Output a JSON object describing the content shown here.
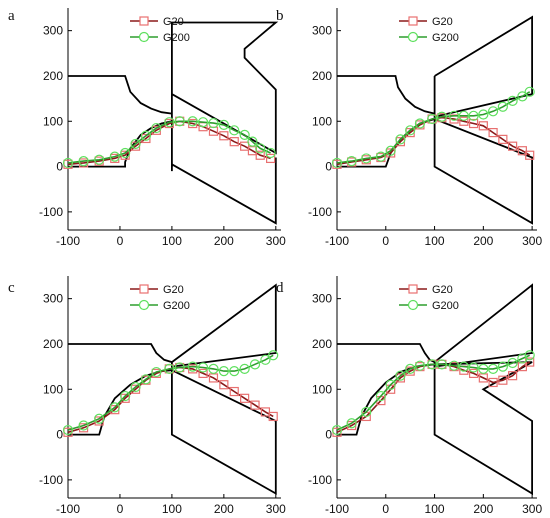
{
  "colors": {
    "geometry": "#000000",
    "g20_line": "#8b1a1a",
    "g20_marker": "#e87070",
    "g200_line": "#2e9e2e",
    "g200_marker": "#5ee05e"
  },
  "chart_data": [
    {
      "type": "line",
      "panel_label": "a",
      "xlim": [
        -100,
        310
      ],
      "ylim": [
        -140,
        350
      ],
      "xticks": [
        -100,
        0,
        100,
        200,
        300
      ],
      "yticks": [
        -100,
        0,
        100,
        200,
        300
      ],
      "legend": [
        "G20",
        "G200"
      ],
      "legend_position": "top-center",
      "geometry": {
        "inlet_bottom": [
          [
            -100,
            0
          ],
          [
            10,
            0
          ],
          [
            10,
            10
          ],
          [
            20,
            40
          ],
          [
            40,
            70
          ],
          [
            60,
            85
          ],
          [
            80,
            95
          ],
          [
            100,
            100
          ]
        ],
        "inlet_top": [
          [
            -100,
            200
          ],
          [
            10,
            200
          ],
          [
            20,
            165
          ],
          [
            40,
            140
          ],
          [
            60,
            128
          ],
          [
            80,
            120
          ],
          [
            100,
            117
          ]
        ],
        "upper_blade": [
          [
            100,
            117
          ],
          [
            100,
            160
          ],
          [
            300,
            30
          ],
          [
            300,
            170
          ],
          [
            240,
            240
          ],
          [
            240,
            260
          ],
          [
            300,
            318
          ],
          [
            100,
            318
          ],
          [
            100,
            0
          ]
        ],
        "lower_blade": [
          [
            100,
            -10
          ],
          [
            100,
            5
          ],
          [
            300,
            -125
          ],
          [
            300,
            20
          ]
        ]
      },
      "series": [
        {
          "name": "G20",
          "x": [
            -100,
            -70,
            -40,
            -10,
            10,
            30,
            50,
            70,
            95,
            115,
            140,
            160,
            180,
            200,
            220,
            240,
            255,
            270,
            290
          ],
          "y": [
            5,
            8,
            12,
            18,
            25,
            45,
            62,
            80,
            95,
            100,
            95,
            88,
            78,
            68,
            55,
            45,
            35,
            25,
            18
          ]
        },
        {
          "name": "G200",
          "x": [
            -100,
            -70,
            -40,
            -10,
            10,
            30,
            50,
            70,
            95,
            115,
            140,
            160,
            180,
            200,
            220,
            240,
            255,
            270,
            290
          ],
          "y": [
            8,
            12,
            15,
            22,
            30,
            50,
            68,
            85,
            98,
            100,
            100,
            98,
            96,
            92,
            80,
            70,
            55,
            40,
            30
          ]
        }
      ]
    },
    {
      "type": "line",
      "panel_label": "b",
      "xlim": [
        -100,
        310
      ],
      "ylim": [
        -140,
        350
      ],
      "xticks": [
        -100,
        0,
        100,
        200,
        300
      ],
      "yticks": [
        -100,
        0,
        100,
        200,
        300
      ],
      "legend": [
        "G20",
        "G200"
      ],
      "legend_position": "top-center",
      "geometry": {
        "inlet_bottom": [
          [
            -100,
            0
          ],
          [
            0,
            0
          ],
          [
            10,
            30
          ],
          [
            30,
            60
          ],
          [
            50,
            80
          ],
          [
            70,
            95
          ],
          [
            100,
            105
          ]
        ],
        "inlet_top": [
          [
            -100,
            200
          ],
          [
            20,
            200
          ],
          [
            25,
            175
          ],
          [
            40,
            150
          ],
          [
            60,
            132
          ],
          [
            80,
            122
          ],
          [
            100,
            117
          ]
        ],
        "upper_blade": [
          [
            100,
            200
          ],
          [
            300,
            330
          ],
          [
            300,
            160
          ],
          [
            100,
            110
          ],
          [
            100,
            200
          ]
        ],
        "lower_blade": [
          [
            100,
            105
          ],
          [
            100,
            0
          ],
          [
            300,
            -125
          ],
          [
            300,
            20
          ],
          [
            100,
            105
          ]
        ]
      },
      "series": [
        {
          "name": "G20",
          "x": [
            -100,
            -70,
            -40,
            -10,
            10,
            30,
            50,
            70,
            95,
            115,
            140,
            160,
            180,
            200,
            220,
            240,
            260,
            280,
            295
          ],
          "y": [
            5,
            10,
            15,
            20,
            30,
            55,
            75,
            92,
            105,
            108,
            105,
            100,
            95,
            90,
            75,
            60,
            45,
            35,
            25
          ]
        },
        {
          "name": "G200",
          "x": [
            -100,
            -70,
            -40,
            -10,
            10,
            30,
            50,
            70,
            95,
            115,
            140,
            160,
            180,
            200,
            220,
            240,
            260,
            280,
            295
          ],
          "y": [
            8,
            12,
            18,
            22,
            35,
            60,
            80,
            95,
            105,
            110,
            112,
            112,
            112,
            115,
            122,
            132,
            145,
            155,
            165
          ]
        }
      ]
    },
    {
      "type": "line",
      "panel_label": "c",
      "xlim": [
        -100,
        310
      ],
      "ylim": [
        -140,
        350
      ],
      "xticks": [
        -100,
        0,
        100,
        200,
        300
      ],
      "yticks": [
        -100,
        0,
        100,
        200,
        300
      ],
      "legend": [
        "G20",
        "G200"
      ],
      "legend_position": "top-center",
      "geometry": {
        "inlet_bottom": [
          [
            -100,
            0
          ],
          [
            -40,
            0
          ],
          [
            -30,
            40
          ],
          [
            -10,
            80
          ],
          [
            20,
            110
          ],
          [
            50,
            130
          ],
          [
            80,
            140
          ],
          [
            100,
            142
          ]
        ],
        "inlet_top": [
          [
            -100,
            200
          ],
          [
            60,
            200
          ],
          [
            70,
            180
          ],
          [
            85,
            165
          ],
          [
            100,
            160
          ]
        ],
        "upper_blade": [
          [
            100,
            160
          ],
          [
            100,
            150
          ],
          [
            300,
            180
          ],
          [
            300,
            330
          ],
          [
            100,
            160
          ]
        ],
        "lower_blade": [
          [
            100,
            142
          ],
          [
            100,
            0
          ],
          [
            300,
            -130
          ],
          [
            300,
            30
          ],
          [
            100,
            142
          ]
        ]
      },
      "series": [
        {
          "name": "G20",
          "x": [
            -100,
            -70,
            -40,
            -10,
            10,
            30,
            50,
            70,
            95,
            115,
            140,
            160,
            180,
            200,
            220,
            240,
            260,
            280,
            295
          ],
          "y": [
            5,
            15,
            30,
            55,
            80,
            100,
            120,
            135,
            145,
            148,
            145,
            135,
            125,
            110,
            95,
            80,
            65,
            50,
            40
          ]
        },
        {
          "name": "G200",
          "x": [
            -100,
            -70,
            -40,
            -10,
            10,
            30,
            50,
            70,
            95,
            115,
            140,
            160,
            180,
            200,
            220,
            240,
            260,
            280,
            295
          ],
          "y": [
            10,
            20,
            35,
            60,
            85,
            105,
            122,
            138,
            145,
            148,
            150,
            148,
            145,
            140,
            140,
            145,
            155,
            165,
            175
          ]
        }
      ]
    },
    {
      "type": "line",
      "panel_label": "d",
      "xlim": [
        -100,
        310
      ],
      "ylim": [
        -140,
        350
      ],
      "xticks": [
        -100,
        0,
        100,
        200,
        300
      ],
      "yticks": [
        -100,
        0,
        100,
        200,
        300
      ],
      "legend": [
        "G20",
        "G200"
      ],
      "legend_position": "top-center",
      "geometry": {
        "inlet_bottom": [
          [
            -100,
            0
          ],
          [
            -60,
            0
          ],
          [
            -50,
            40
          ],
          [
            -30,
            80
          ],
          [
            0,
            115
          ],
          [
            30,
            138
          ],
          [
            60,
            150
          ],
          [
            100,
            155
          ]
        ],
        "inlet_top": [
          [
            -100,
            200
          ],
          [
            70,
            200
          ],
          [
            80,
            180
          ],
          [
            90,
            165
          ],
          [
            100,
            160
          ]
        ],
        "upper_blade": [
          [
            100,
            160
          ],
          [
            100,
            150
          ],
          [
            300,
            180
          ],
          [
            300,
            330
          ],
          [
            100,
            160
          ]
        ],
        "lower_blade": [
          [
            100,
            155
          ],
          [
            100,
            0
          ],
          [
            300,
            -130
          ],
          [
            300,
            30
          ],
          [
            200,
            100
          ],
          [
            300,
            160
          ],
          [
            100,
            155
          ]
        ]
      },
      "series": [
        {
          "name": "G20",
          "x": [
            -100,
            -70,
            -40,
            -10,
            10,
            30,
            50,
            70,
            95,
            115,
            140,
            160,
            180,
            200,
            220,
            240,
            260,
            280,
            295
          ],
          "y": [
            5,
            20,
            40,
            75,
            100,
            125,
            140,
            150,
            155,
            155,
            150,
            142,
            135,
            125,
            115,
            120,
            130,
            150,
            160
          ]
        },
        {
          "name": "G200",
          "x": [
            -100,
            -70,
            -40,
            -10,
            10,
            30,
            50,
            70,
            95,
            115,
            140,
            160,
            180,
            200,
            220,
            240,
            260,
            280,
            295
          ],
          "y": [
            10,
            25,
            50,
            85,
            110,
            130,
            145,
            152,
            155,
            155,
            152,
            150,
            148,
            145,
            145,
            150,
            158,
            168,
            175
          ]
        }
      ]
    }
  ]
}
